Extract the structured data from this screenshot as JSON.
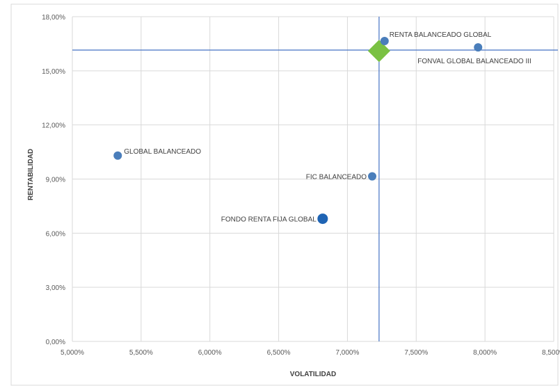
{
  "chart_data": {
    "type": "scatter",
    "title": "",
    "xlabel": "VOLATILIDAD",
    "ylabel": "RENTABILIDAD",
    "xlim": [
      5.0,
      8.5
    ],
    "ylim": [
      0,
      18
    ],
    "x_ticks": [
      "5,000%",
      "5,500%",
      "6,000%",
      "6,500%",
      "7,000%",
      "7,500%",
      "8,000%",
      "8,500%"
    ],
    "y_ticks": [
      "0,00%",
      "3,00%",
      "6,00%",
      "9,00%",
      "12,00%",
      "15,00%",
      "18,00%"
    ],
    "grid": true,
    "reference_lines": {
      "x": 7.23,
      "y": 16.15,
      "color": "#4472c4"
    },
    "points": [
      {
        "label": "GLOBAL BALANCEADO",
        "x": 5.33,
        "y": 10.3,
        "color": "#4a7ebb"
      },
      {
        "label": "RENTA BALANCEADO GLOBAL",
        "x": 7.27,
        "y": 16.65,
        "color": "#4a7ebb"
      },
      {
        "label": "FONVAL GLOBAL BALANCEADO III",
        "x": 7.95,
        "y": 16.3,
        "color": "#4a7ebb"
      },
      {
        "label": "FIC BALANCEADO",
        "x": 7.18,
        "y": 9.15,
        "color": "#4a7ebb"
      },
      {
        "label": "FONDO RENTA FIJA GLOBAL",
        "x": 6.82,
        "y": 6.8,
        "color": "#1f64b4"
      }
    ],
    "highlight": {
      "x": 7.23,
      "y": 16.1,
      "color": "#7ac143",
      "shape": "diamond"
    }
  }
}
